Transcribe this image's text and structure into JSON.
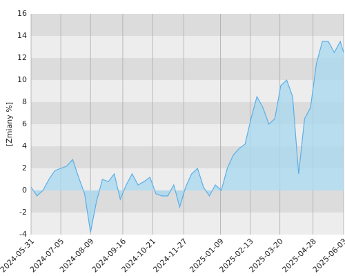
{
  "chart_data": {
    "type": "area",
    "ylabel": "[Zmiany %]",
    "x": [
      "2024-05-31",
      "2024-06-07",
      "2024-06-14",
      "2024-06-21",
      "2024-06-28",
      "2024-07-05",
      "2024-07-12",
      "2024-07-19",
      "2024-07-26",
      "2024-08-02",
      "2024-08-09",
      "2024-08-16",
      "2024-08-23",
      "2024-08-30",
      "2024-09-06",
      "2024-09-13",
      "2024-09-20",
      "2024-09-27",
      "2024-10-04",
      "2024-10-11",
      "2024-10-18",
      "2024-10-25",
      "2024-11-01",
      "2024-11-08",
      "2024-11-15",
      "2024-11-22",
      "2024-11-29",
      "2024-12-06",
      "2024-12-13",
      "2024-12-20",
      "2024-12-27",
      "2025-01-03",
      "2025-01-10",
      "2025-01-17",
      "2025-01-24",
      "2025-01-31",
      "2025-02-07",
      "2025-02-14",
      "2025-02-21",
      "2025-02-28",
      "2025-03-07",
      "2025-03-14",
      "2025-03-21",
      "2025-03-28",
      "2025-04-04",
      "2025-04-11",
      "2025-04-18",
      "2025-04-25",
      "2025-05-02",
      "2025-05-09",
      "2025-05-16",
      "2025-05-23",
      "2025-05-30",
      "2025-06-03"
    ],
    "series": [
      {
        "color": "#5aaee8",
        "values": [
          0.3,
          -0.5,
          0.0,
          1.0,
          1.8,
          2.0,
          2.2,
          2.8,
          1.2,
          -0.3,
          -3.8,
          -1.0,
          1.0,
          0.8,
          1.5,
          -0.8,
          0.5,
          1.5,
          0.5,
          0.8,
          1.2,
          -0.3,
          -0.5,
          -0.5,
          0.5,
          -1.5,
          0.3,
          1.5,
          2.0,
          0.3,
          -0.5,
          0.5,
          0.0,
          2.0,
          3.2,
          3.8,
          4.2,
          6.5,
          8.5,
          7.5,
          6.0,
          6.5,
          9.5,
          10.0,
          8.5,
          1.5,
          6.5,
          7.5,
          11.5,
          13.5,
          13.5,
          12.5,
          13.5,
          12.5
        ]
      }
    ],
    "xlim": [
      "2024-05-31",
      "2025-06-03"
    ],
    "xticks": [
      "2024-05-31",
      "2024-07-05",
      "2024-08-09",
      "2024-09-16",
      "2024-10-21",
      "2024-11-27",
      "2025-01-09",
      "2025-02-13",
      "2025-03-20",
      "2025-04-28",
      "2025-06-03"
    ],
    "ylim": [
      -4,
      16
    ],
    "yticks": [
      -4,
      -2,
      0,
      2,
      4,
      6,
      8,
      10,
      12,
      14,
      16
    ],
    "grid": true
  }
}
